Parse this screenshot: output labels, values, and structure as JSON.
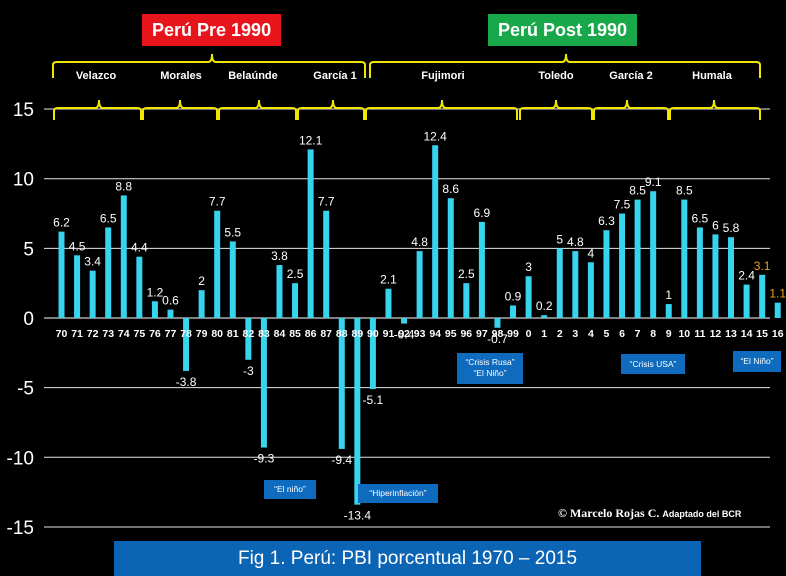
{
  "eras": {
    "pre": {
      "label": "Perú Pre 1990",
      "color": "#e8141c"
    },
    "post": {
      "label": "Perú Post 1990",
      "color": "#18a84a"
    }
  },
  "governments": [
    "Velazco",
    "Morales",
    "Belaúnde",
    "García 1",
    "Fujimori",
    "Toledo",
    "García 2",
    "Humala"
  ],
  "callouts": {
    "nino1": "“El niño”",
    "hiper": "“Hiperinflación”",
    "rusa": "“Crisis Rusa”",
    "nino2": "“El Niño”",
    "usa": "“Crisis USA”",
    "nino3": "“El Niño”"
  },
  "credit": {
    "symbol": "©",
    "name": "Marcelo Rojas C.",
    "note": "Adaptado del BCR"
  },
  "caption": "Fig 1. Perú: PBI porcentual 1970 – 2015",
  "colors": {
    "bar": "#37d4ee",
    "bracket": "#f2e600",
    "highlight": "#e8a020",
    "axis": "#ffffff",
    "grid": "#ffffff"
  },
  "chart_data": {
    "type": "bar",
    "categories": [
      "70",
      "71",
      "72",
      "73",
      "74",
      "75",
      "76",
      "77",
      "78",
      "79",
      "80",
      "81",
      "82",
      "83",
      "84",
      "85",
      "86",
      "87",
      "88",
      "89",
      "90",
      "91",
      "92",
      "93",
      "94",
      "95",
      "96",
      "97",
      "98",
      "99",
      "0",
      "1",
      "2",
      "3",
      "4",
      "5",
      "6",
      "7",
      "8",
      "9",
      "10",
      "11",
      "12",
      "13",
      "14",
      "15",
      "16"
    ],
    "values": [
      6.2,
      4.5,
      3.4,
      6.5,
      8.8,
      4.4,
      1.2,
      0.6,
      -3.8,
      2,
      7.7,
      5.5,
      -3,
      -9.3,
      3.8,
      2.5,
      12.1,
      7.7,
      -9.4,
      -13.4,
      -5.1,
      2.1,
      -0.4,
      4.8,
      12.4,
      8.6,
      2.5,
      6.9,
      -0.7,
      0.9,
      3,
      0.2,
      5,
      4.8,
      4,
      6.3,
      7.5,
      8.5,
      9.1,
      1,
      8.5,
      6.5,
      6,
      5.8,
      2.4,
      3.1,
      1.1
    ],
    "labels": [
      "6.2",
      "4.5",
      "3.4",
      "6.5",
      "8.8",
      "4.4",
      "1.2",
      "0.6",
      "-3.8",
      "2",
      "7.7",
      "5.5",
      "-3",
      "-9.3",
      "3.8",
      "2.5",
      "12.1",
      "7.7",
      "-9.4",
      "-13.4",
      "-5.1",
      "2.1",
      "-0.4",
      "4.8",
      "12.4",
      "8.6",
      "2.5",
      "6.9",
      "-0.7",
      "0.9",
      "3",
      "0.2",
      "5",
      "4.8",
      "4",
      "6.3",
      "7.5",
      "8.5",
      "9.1",
      "1",
      "8.5",
      "6.5",
      "6",
      "5.8",
      "2.4",
      "3.1",
      "1.1"
    ],
    "highlighted_labels": [
      "3.1",
      "1.1"
    ],
    "ylim": [
      -15,
      15
    ],
    "yticks": [
      "15",
      "10",
      "5",
      "0",
      "-5",
      "-10",
      "-15"
    ],
    "grid": true
  }
}
